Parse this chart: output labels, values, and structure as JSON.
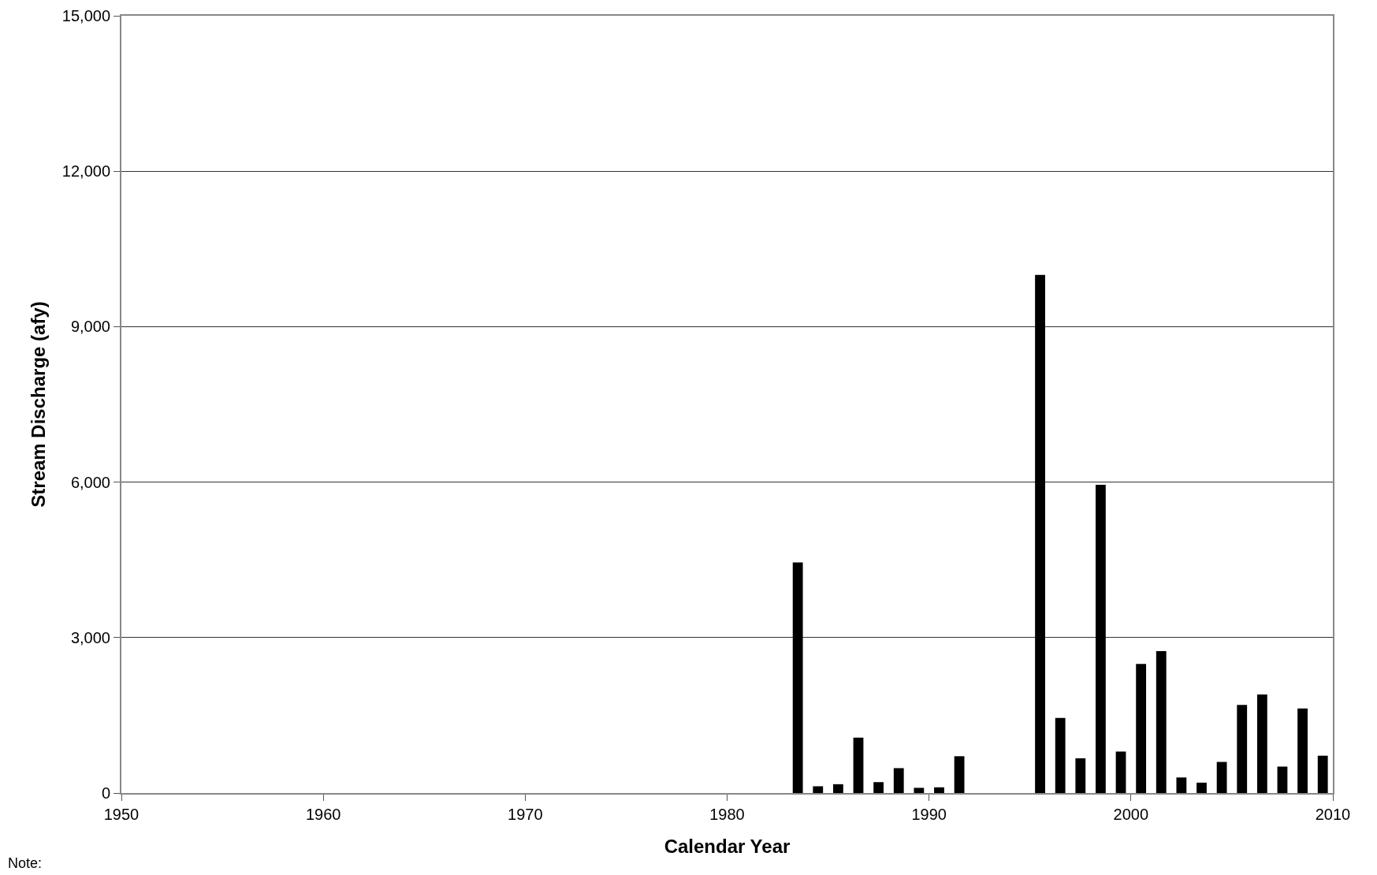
{
  "chart_data": {
    "type": "bar",
    "xlabel": "Calendar Year",
    "ylabel": "Stream Discharge (afy)",
    "x": [
      1983.5,
      1984.5,
      1985.5,
      1986.5,
      1987.5,
      1988.5,
      1989.5,
      1990.5,
      1991.5,
      1995.5,
      1996.5,
      1997.5,
      1998.5,
      1999.5,
      2000.5,
      2001.5,
      2002.5,
      2003.5,
      2004.5,
      2005.5,
      2006.5,
      2007.5,
      2008.5,
      2009.5
    ],
    "values": [
      4450,
      130,
      170,
      1070,
      210,
      480,
      100,
      110,
      710,
      10000,
      1450,
      670,
      5950,
      800,
      2490,
      2740,
      300,
      200,
      600,
      1700,
      1900,
      510,
      1630,
      720
    ],
    "color": "#000000",
    "xlim": [
      1950,
      2010
    ],
    "xticks": [
      1950,
      1960,
      1970,
      1980,
      1990,
      2000,
      2010
    ],
    "ylim": [
      0,
      15000
    ],
    "yticks": [
      0,
      {
        "value": 3000,
        "label": "3,000"
      },
      {
        "value": 6000,
        "label": "6,000"
      },
      {
        "value": 9000,
        "label": "9,000"
      },
      {
        "value": 12000,
        "label": "12,000"
      },
      {
        "value": 15000,
        "label": "15,000"
      }
    ],
    "grid": "y",
    "annotations": [
      "Note:"
    ]
  }
}
